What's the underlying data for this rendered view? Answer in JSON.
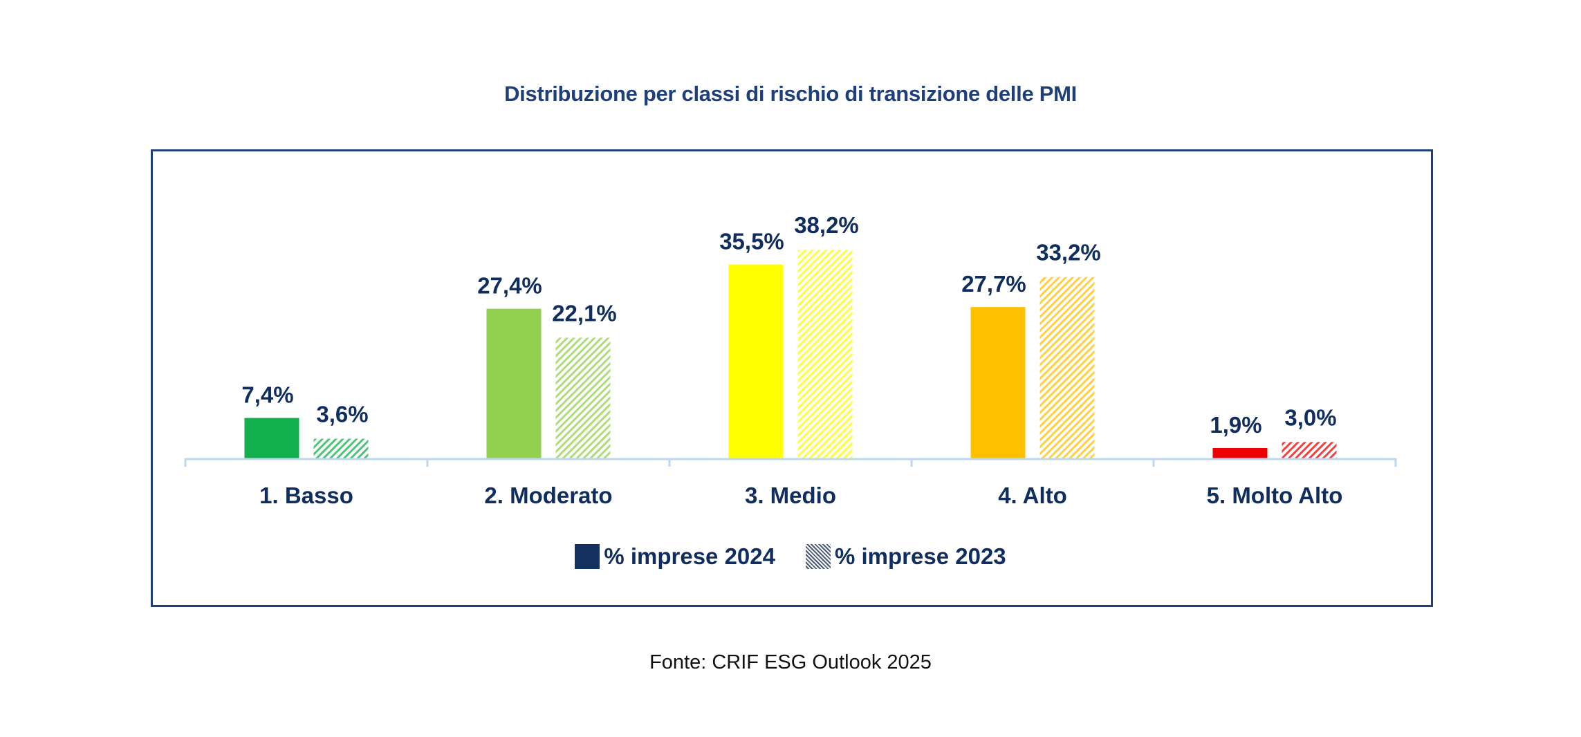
{
  "chart_data": {
    "type": "bar",
    "title": "Distribuzione per classi di rischio di transizione delle PMI",
    "xlabel": "",
    "ylabel": "",
    "ylim": [
      0,
      40
    ],
    "grid": false,
    "legend_position": "bottom-center",
    "value_format": "percent-comma-decimal",
    "categories": [
      "1. Basso",
      "2. Moderato",
      "3. Medio",
      "4. Alto",
      "5. Molto Alto"
    ],
    "category_colors": [
      "#12b04c",
      "#92d050",
      "#ffff00",
      "#ffc000",
      "#ee0000"
    ],
    "series": [
      {
        "name": "% imprese 2024",
        "style": "solid",
        "values": [
          7.4,
          27.4,
          35.5,
          27.7,
          1.9
        ],
        "labels": [
          "7,4%",
          "27,4%",
          "35,5%",
          "27,7%",
          "1,9%"
        ]
      },
      {
        "name": "% imprese 2023",
        "style": "hatched",
        "values": [
          3.6,
          22.1,
          38.2,
          33.2,
          3.0
        ],
        "labels": [
          "3,6%",
          "22,1%",
          "38,2%",
          "33,2%",
          "3,0%"
        ]
      }
    ]
  },
  "legend": {
    "items": [
      {
        "label": "% imprese 2024",
        "swatch": "solid",
        "color": "#14305f"
      },
      {
        "label": "% imprese 2023",
        "swatch": "hatched",
        "color": "#4a5a78"
      }
    ]
  },
  "colors": {
    "title": "#1f3f7a",
    "labels": "#0f2d5f",
    "frame": "#1f3f7a",
    "axis": "#bdd7ee"
  },
  "source": "Fonte: CRIF ESG Outlook 2025"
}
